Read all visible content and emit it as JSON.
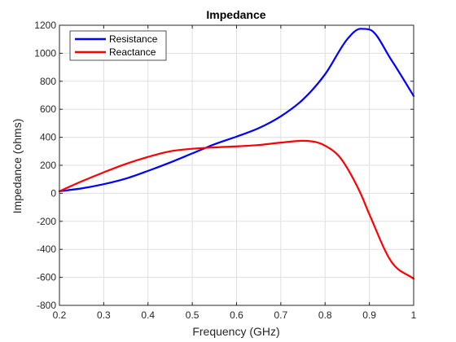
{
  "chart_data": {
    "type": "line",
    "title": "Impedance",
    "xlabel": "Frequency (GHz)",
    "ylabel": "Impedance (ohms)",
    "xlim": [
      0.2,
      1.0
    ],
    "ylim": [
      -800,
      1200
    ],
    "xticks": [
      0.2,
      0.3,
      0.4,
      0.5,
      0.6,
      0.7,
      0.8,
      0.9,
      1.0
    ],
    "xtick_labels": [
      "0.2",
      "0.3",
      "0.4",
      "0.5",
      "0.6",
      "0.7",
      "0.8",
      "0.9",
      "1"
    ],
    "yticks": [
      -800,
      -600,
      -400,
      -200,
      0,
      200,
      400,
      600,
      800,
      1000,
      1200
    ],
    "ytick_labels": [
      "-800",
      "-600",
      "-400",
      "-200",
      "0",
      "200",
      "400",
      "600",
      "800",
      "1000",
      "1200"
    ],
    "grid": true,
    "legend": "top-left",
    "series": [
      {
        "name": "Resistance",
        "color": "#0000ff",
        "x": [
          0.2,
          0.25,
          0.3,
          0.35,
          0.4,
          0.45,
          0.5,
          0.55,
          0.6,
          0.65,
          0.7,
          0.75,
          0.8,
          0.85,
          0.88,
          0.9,
          0.95,
          1.0
        ],
        "y": [
          15,
          35,
          65,
          105,
          160,
          220,
          285,
          350,
          405,
          465,
          550,
          670,
          850,
          1100,
          1175,
          1170,
          950,
          695
        ]
      },
      {
        "name": "Reactance",
        "color": "#ff0000",
        "x": [
          0.2,
          0.25,
          0.3,
          0.35,
          0.4,
          0.45,
          0.5,
          0.55,
          0.6,
          0.65,
          0.7,
          0.75,
          0.78,
          0.8,
          0.83,
          0.85,
          0.88,
          0.9,
          0.95,
          1.0
        ],
        "y": [
          15,
          85,
          150,
          210,
          260,
          300,
          318,
          328,
          335,
          345,
          362,
          375,
          365,
          340,
          270,
          180,
          0,
          -150,
          -490,
          -610
        ]
      }
    ]
  }
}
